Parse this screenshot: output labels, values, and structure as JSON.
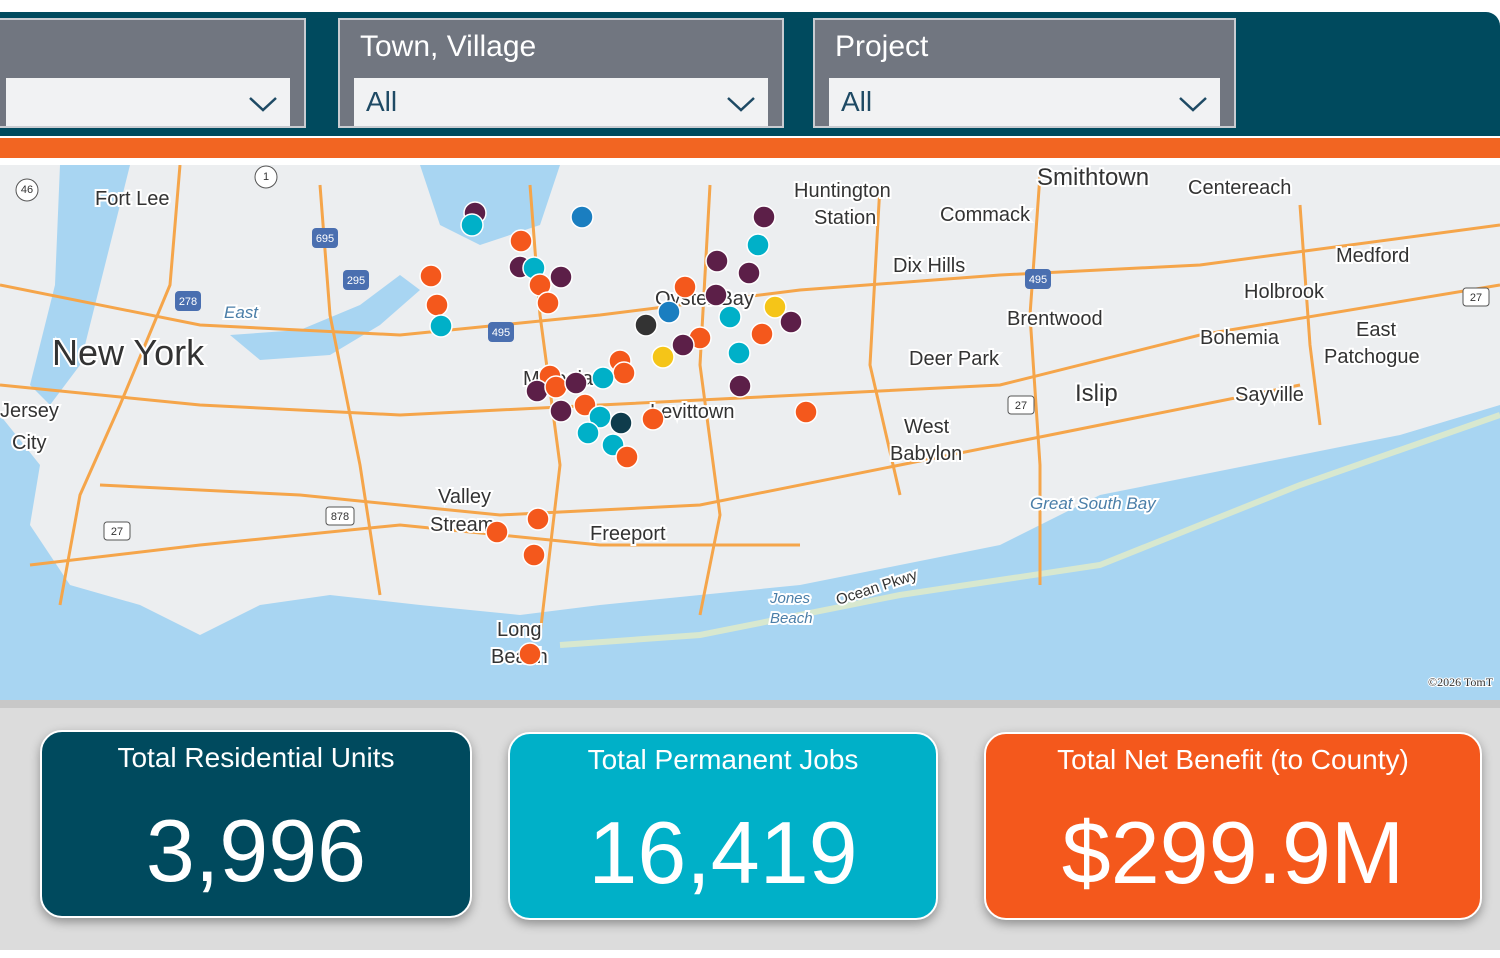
{
  "filters": [
    {
      "label": null,
      "value": null
    },
    {
      "label": "Town, Village",
      "value": "All"
    },
    {
      "label": "Project",
      "value": "All"
    }
  ],
  "map": {
    "places": [
      "Fort Lee",
      "New York",
      "Jersey",
      "City",
      "East",
      "Huntington",
      "Station",
      "Smithtown",
      "Centereach",
      "Commack",
      "Dix Hills",
      "Medford",
      "Holbrook",
      "Brentwood",
      "Bohemia",
      "East",
      "Patchogue",
      "Deer Park",
      "Islip",
      "Sayville",
      "West",
      "Babylon",
      "Great South Bay",
      "Valley",
      "Stream",
      "Freeport",
      "Long",
      "Beach",
      "Jones",
      "Beach",
      "Ocean Pkwy",
      "Oyster Bay",
      "Levittown",
      "Mineola"
    ],
    "shields": [
      "46",
      "1",
      "695",
      "295",
      "278",
      "495",
      "495",
      "878",
      "27",
      "27",
      "27"
    ],
    "copyright": "©2026 TomT"
  },
  "kpis": [
    {
      "title": "Total Residential Units",
      "value": "3,996"
    },
    {
      "title": "Total Permanent Jobs",
      "value": "16,419"
    },
    {
      "title": "Total Net Benefit (to County)",
      "value": "$299.9M"
    }
  ]
}
